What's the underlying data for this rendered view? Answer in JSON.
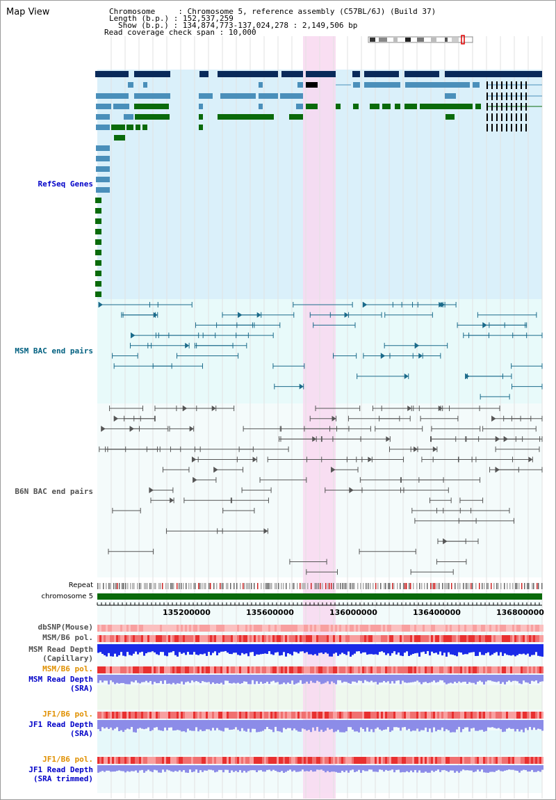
{
  "page": {
    "title": "Map View"
  },
  "info": {
    "chromosome_label": "Chromosome",
    "chromosome_value": "Chromosome 5, reference assembly (C57BL/6J) (Build 37)",
    "length_label": "Length (b.p.)",
    "length_value": "152,537,259",
    "show_label": "Show (b.p.)",
    "show_value": "134,874,773-137,024,278 : 2,149,506 bp",
    "coverage_label": "Read coverage check span",
    "coverage_value": "10,000"
  },
  "tracks": {
    "refseq": "RefSeq Genes",
    "msm_bac": "MSM BAC end pairs",
    "b6n_bac": "B6N BAC end pairs",
    "repeat": "Repeat",
    "chromosome": "chromosome 5",
    "dbsnp": "dbSNP(Mouse)",
    "msm_b6_pol_1": "MSM/B6 pol.",
    "msm_depth_cap_1": "MSM Read Depth",
    "msm_depth_cap_2": "(Capillary)",
    "msm_b6_pol_2": "MSM/B6 pol.",
    "msm_depth_sra_1": "MSM Read Depth",
    "msm_depth_sra_2": "(SRA)",
    "jf1_b6_pol_1": "JF1/B6 pol.",
    "jf1_depth_sra_1": "JF1 Read Depth",
    "jf1_depth_sra_2": "(SRA)",
    "jf1_b6_pol_2": "JF1/B6 pol.",
    "jf1_depth_trim_1": "JF1 Read Depth",
    "jf1_depth_trim_2": "(SRA trimmed)"
  },
  "axis": {
    "ticks": [
      "135200000",
      "135600000",
      "136000000",
      "136400000",
      "136800000"
    ]
  },
  "colors": {
    "refseq_bg": "#daf0fa",
    "bac_bg": "#e8fafa",
    "highlight": "#f8d8f0",
    "gene_dark": "#0a2a5a",
    "gene_mid": "#4a8fba",
    "gene_green": "#0a6a0a",
    "chrom_bar": "#0a6a0a",
    "label_blue": "#0000c8",
    "label_orange": "#e09000",
    "label_teal": "#006080",
    "label_grey": "#505050"
  }
}
